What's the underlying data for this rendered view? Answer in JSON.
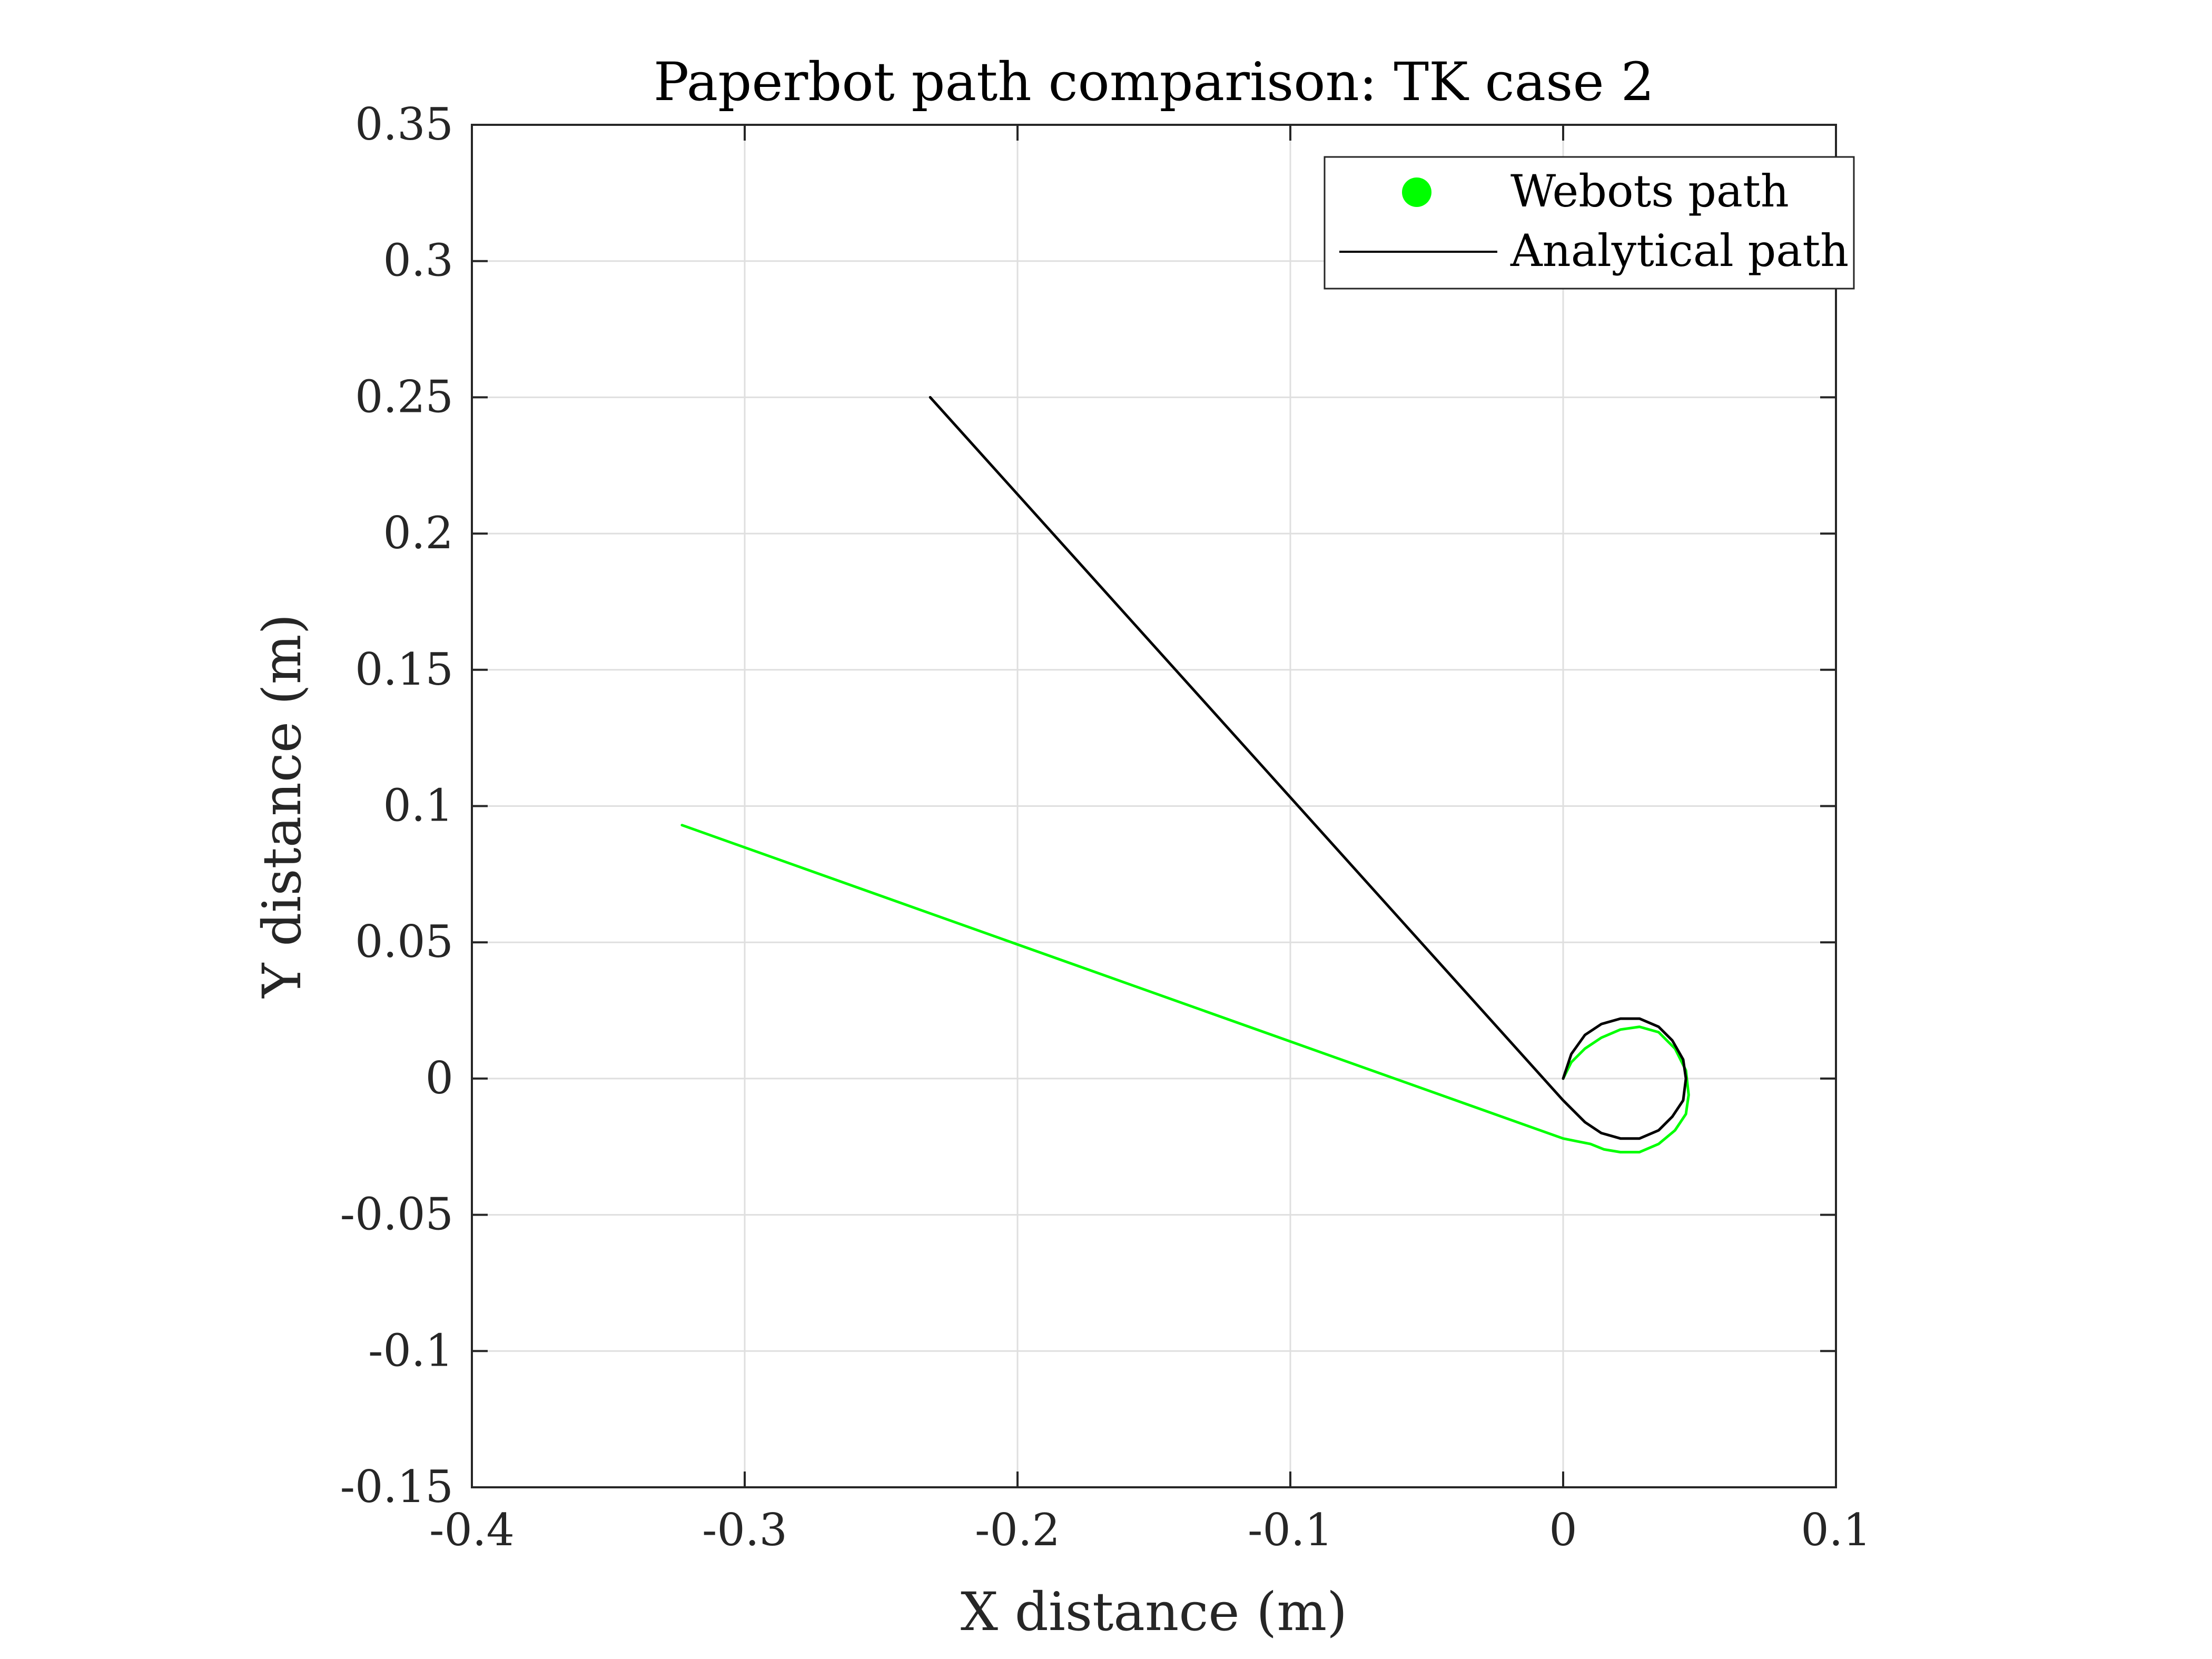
{
  "chart_data": {
    "type": "line",
    "title": "Paperbot path comparison: TK case 2",
    "xlabel": "X distance (m)",
    "ylabel": "Y distance (m)",
    "xlim": [
      -0.4,
      0.1
    ],
    "ylim": [
      -0.15,
      0.35
    ],
    "xticks": [
      -0.4,
      -0.3,
      -0.2,
      -0.1,
      0,
      0.1
    ],
    "xtick_labels": [
      "-0.4",
      "-0.3",
      "-0.2",
      "-0.1",
      "0",
      "0.1"
    ],
    "yticks": [
      -0.15,
      -0.1,
      -0.05,
      0,
      0.05,
      0.1,
      0.15,
      0.2,
      0.25,
      0.3,
      0.35
    ],
    "ytick_labels": [
      "-0.15",
      "-0.1",
      "-0.05",
      "0",
      "0.05",
      "0.1",
      "0.15",
      "0.2",
      "0.25",
      "0.3",
      "0.35"
    ],
    "grid": true,
    "legend_position": "top-right",
    "series": [
      {
        "name": "Webots path",
        "color": "#00ff00",
        "marker": "circle",
        "x": [
          0,
          0.003,
          0.008,
          0.014,
          0.021,
          0.028,
          0.035,
          0.041,
          0.045,
          0.046,
          0.045,
          0.041,
          0.035,
          0.028,
          0.021,
          0.015,
          0.01,
          0.005,
          0,
          -0.323
        ],
        "y": [
          0,
          0.006,
          0.011,
          0.015,
          0.018,
          0.019,
          0.017,
          0.011,
          0.003,
          -0.006,
          -0.013,
          -0.019,
          -0.024,
          -0.027,
          -0.027,
          -0.026,
          -0.024,
          -0.023,
          -0.022,
          0.093
        ]
      },
      {
        "name": "Analytical path",
        "color": "#000000",
        "marker": "none",
        "x": [
          0,
          0.003,
          0.008,
          0.014,
          0.021,
          0.028,
          0.035,
          0.04,
          0.044,
          0.045,
          0.044,
          0.04,
          0.035,
          0.028,
          0.021,
          0.014,
          0.008,
          0.003,
          0,
          -0.232
        ],
        "y": [
          0,
          0.009,
          0.016,
          0.02,
          0.022,
          0.022,
          0.019,
          0.014,
          0.007,
          0,
          -0.008,
          -0.014,
          -0.019,
          -0.022,
          -0.022,
          -0.02,
          -0.016,
          -0.011,
          -0.008,
          0.25
        ]
      }
    ]
  }
}
